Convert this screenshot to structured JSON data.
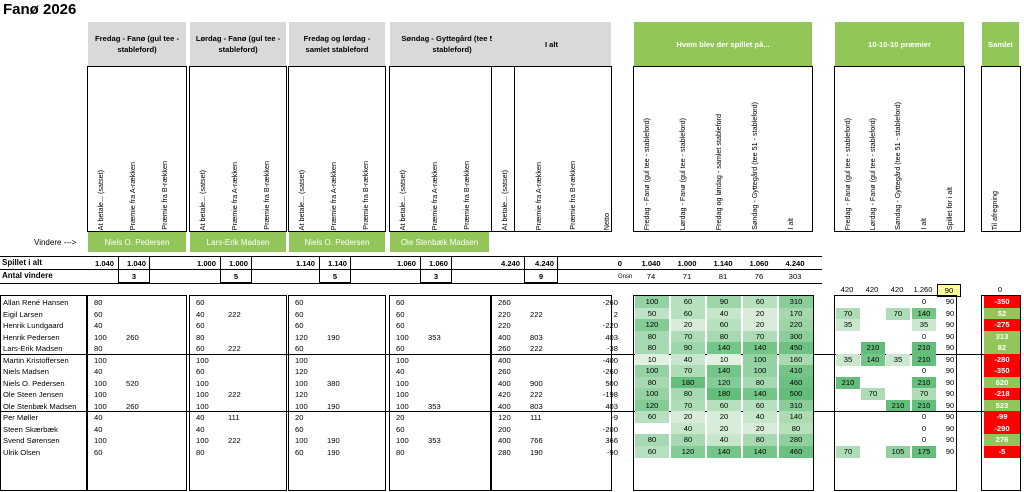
{
  "title": "Fanø 2026",
  "groups": [
    {
      "label": "Fredag - Fanø (gul tee - stableford)"
    },
    {
      "label": "Lørdag - Fanø (gul tee - stableford)"
    },
    {
      "label": "Fredag og lørdag - samlet stableford"
    },
    {
      "label": "Søndag - Gyttegård (tee 51 - stableford)"
    },
    {
      "label": "I alt"
    },
    {
      "label": "Hvem blev der spillet på..."
    },
    {
      "label": "10-10-10 præmier"
    },
    {
      "label": "Samlet"
    }
  ],
  "sub_headers": {
    "payout": [
      "At betale... (satset)",
      "Præmie fra A-rækken",
      "Præmie fra B-rækken"
    ],
    "total": [
      "At betale... (satset)",
      "Præmie fra A-rækken",
      "Præmie fra B-rækken",
      "Netto"
    ],
    "played": [
      "Fredag - Fanø (gul tee - stableford)",
      "Lørdag - Fanø (gul tee - stableford)",
      "Fredag og lørdag - samlet stableford",
      "Søndag - Gyttegård (tee 51 - stableford)",
      "I alt"
    ],
    "prize": [
      "Fredag - Fanø (gul tee - stableford)",
      "Lørdag - Fanø (gul tee - stableford)",
      "Søndag - Gyttegård (tee 51 - stableford)",
      "I alt",
      "Spillet for i alt"
    ],
    "total2": [
      "Til afregning"
    ]
  },
  "winners_label": "Vindere --->",
  "winners": [
    "Niels O. Pedersen",
    "Lars-Erik Madsen",
    "Niels O. Pedersen",
    "Ole Stenbæk Madsen"
  ],
  "summary": {
    "spillet_label": "Spillet i alt",
    "antal_label": "Antal vindere",
    "spillet": [
      [
        "1.040",
        "1.040"
      ],
      [
        "1.000",
        "1.000"
      ],
      [
        "1.140",
        "1.140"
      ],
      [
        "1.060",
        "1.060"
      ],
      [
        "4.240",
        "4.240",
        "0"
      ]
    ],
    "antal": [
      "3",
      "5",
      "5",
      "3",
      "9"
    ],
    "played_totals": [
      "1.040",
      "1.000",
      "1.140",
      "1.060",
      "4.240"
    ],
    "gnsn_label": "Gnsn",
    "gnsn": [
      "74",
      "71",
      "81",
      "76",
      "303"
    ],
    "prize_totals": [
      "420",
      "420",
      "420",
      "1.260",
      "90"
    ],
    "samlet_total": "0"
  },
  "colors": {
    "accent_green": "#92c658",
    "header_gray": "#d9d9d9",
    "positive": "#92c658",
    "negative": "#ff0000",
    "highlight_yellow": "#ffff99"
  },
  "players": [
    {
      "name": "Allan René Hansen",
      "pay": [
        "80",
        "",
        "",
        "60",
        "",
        "",
        "60",
        "",
        "",
        "60",
        "",
        ""
      ],
      "tot": [
        "260",
        "",
        "-260"
      ],
      "played": [
        "100",
        "60",
        "90",
        "60",
        "310"
      ],
      "prize": [
        "",
        "",
        "",
        "0",
        "90"
      ],
      "samlet": "-350",
      "pos": false
    },
    {
      "name": "Eigil Larsen",
      "pay": [
        "60",
        "",
        "",
        "40",
        "222",
        "",
        "60",
        "",
        "",
        "60",
        "",
        ""
      ],
      "tot": [
        "220",
        "222",
        "2"
      ],
      "played": [
        "50",
        "60",
        "40",
        "20",
        "170"
      ],
      "prize": [
        "70",
        "",
        "70",
        "140",
        "90"
      ],
      "samlet": "52",
      "pos": true
    },
    {
      "name": "Henrik Lundgaard",
      "pay": [
        "40",
        "",
        "",
        "60",
        "",
        "",
        "60",
        "",
        "",
        "60",
        "",
        ""
      ],
      "tot": [
        "220",
        "",
        "-220"
      ],
      "played": [
        "120",
        "20",
        "60",
        "20",
        "220"
      ],
      "prize": [
        "35",
        "",
        "",
        "35",
        "90"
      ],
      "samlet": "-275",
      "pos": false
    },
    {
      "name": "Henrik Pedersen",
      "pay": [
        "100",
        "260",
        "",
        "80",
        "",
        "",
        "120",
        "190",
        "",
        "100",
        "353",
        ""
      ],
      "tot": [
        "400",
        "803",
        "403"
      ],
      "played": [
        "80",
        "70",
        "80",
        "70",
        "300"
      ],
      "prize": [
        "",
        "",
        "",
        "0",
        "90"
      ],
      "samlet": "313",
      "pos": true
    },
    {
      "name": "Lars-Erik Madsen",
      "pay": [
        "80",
        "",
        "",
        "60",
        "222",
        "",
        "60",
        "",
        "",
        "60",
        "",
        ""
      ],
      "tot": [
        "260",
        "222",
        "-38"
      ],
      "played": [
        "80",
        "90",
        "140",
        "140",
        "450"
      ],
      "prize": [
        "",
        "210",
        "",
        "210",
        "90"
      ],
      "samlet": "82",
      "pos": true
    },
    {
      "name": "Martin Kristoffersen",
      "pay": [
        "100",
        "",
        "",
        "100",
        "",
        "",
        "100",
        "",
        "",
        "100",
        "",
        ""
      ],
      "tot": [
        "400",
        "",
        "-400"
      ],
      "played": [
        "10",
        "40",
        "10",
        "100",
        "160"
      ],
      "prize": [
        "35",
        "140",
        "35",
        "210",
        "90"
      ],
      "samlet": "-280",
      "pos": false
    },
    {
      "name": "Niels Madsen",
      "pay": [
        "40",
        "",
        "",
        "60",
        "",
        "",
        "120",
        "",
        "",
        "40",
        "",
        ""
      ],
      "tot": [
        "260",
        "",
        "-260"
      ],
      "played": [
        "100",
        "70",
        "140",
        "100",
        "410"
      ],
      "prize": [
        "",
        "",
        "",
        "0",
        "90"
      ],
      "samlet": "-350",
      "pos": false
    },
    {
      "name": "Niels O. Pedersen",
      "pay": [
        "100",
        "520",
        "",
        "100",
        "",
        "",
        "100",
        "380",
        "",
        "100",
        "",
        ""
      ],
      "tot": [
        "400",
        "900",
        "500"
      ],
      "played": [
        "80",
        "180",
        "120",
        "80",
        "460"
      ],
      "prize": [
        "210",
        "",
        "",
        "210",
        "90"
      ],
      "samlet": "620",
      "pos": true
    },
    {
      "name": "Ole Steen Jensen",
      "pay": [
        "100",
        "",
        "",
        "100",
        "222",
        "",
        "120",
        "",
        "",
        "100",
        "",
        ""
      ],
      "tot": [
        "420",
        "222",
        "-198"
      ],
      "played": [
        "100",
        "80",
        "180",
        "140",
        "500"
      ],
      "prize": [
        "",
        "70",
        "",
        "70",
        "90"
      ],
      "samlet": "-218",
      "pos": false
    },
    {
      "name": "Ole Stenbæk Madsen",
      "pay": [
        "100",
        "260",
        "",
        "100",
        "",
        "",
        "100",
        "190",
        "",
        "100",
        "353",
        ""
      ],
      "tot": [
        "400",
        "803",
        "403"
      ],
      "played": [
        "120",
        "70",
        "60",
        "60",
        "310"
      ],
      "prize": [
        "",
        "",
        "210",
        "210",
        "90"
      ],
      "samlet": "523",
      "pos": true
    },
    {
      "name": "Per Møller",
      "pay": [
        "40",
        "",
        "",
        "40",
        "111",
        "",
        "20",
        "",
        "",
        "20",
        "",
        ""
      ],
      "tot": [
        "120",
        "111",
        "-9"
      ],
      "played": [
        "60",
        "20",
        "20",
        "40",
        "140"
      ],
      "prize": [
        "",
        "",
        "",
        "0",
        "90"
      ],
      "samlet": "-99",
      "pos": false
    },
    {
      "name": "Steen Skærbæk",
      "pay": [
        "40",
        "",
        "",
        "40",
        "",
        "",
        "60",
        "",
        "",
        "60",
        "",
        ""
      ],
      "tot": [
        "200",
        "",
        "-200"
      ],
      "played": [
        "",
        "40",
        "20",
        "20",
        "80"
      ],
      "prize": [
        "",
        "",
        "",
        "0",
        "90"
      ],
      "samlet": "-290",
      "pos": false
    },
    {
      "name": "Svend Sørensen",
      "pay": [
        "100",
        "",
        "",
        "100",
        "222",
        "",
        "100",
        "190",
        "",
        "100",
        "353",
        ""
      ],
      "tot": [
        "400",
        "766",
        "366"
      ],
      "played": [
        "80",
        "80",
        "40",
        "80",
        "280"
      ],
      "prize": [
        "",
        "",
        "",
        "0",
        "90"
      ],
      "samlet": "276",
      "pos": true
    },
    {
      "name": "Ulrik Olsen",
      "pay": [
        "60",
        "",
        "",
        "80",
        "",
        "",
        "60",
        "190",
        "",
        "80",
        "",
        ""
      ],
      "tot": [
        "280",
        "190",
        "-90"
      ],
      "played": [
        "60",
        "120",
        "140",
        "140",
        "460"
      ],
      "prize": [
        "70",
        "",
        "105",
        "175",
        "90"
      ],
      "samlet": "-5",
      "pos": false
    }
  ]
}
